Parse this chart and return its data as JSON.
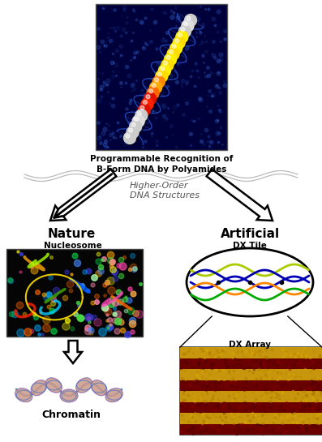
{
  "title_top": "Programmable Recognition of\nB-Form DNA by Polyamides",
  "title_center": "Higher-Order\nDNA Structures",
  "label_nature": "Nature",
  "label_artificial": "Artificial",
  "label_nucleosome": "Nucleosome",
  "label_chromatin": "Chromatin",
  "label_dx_tile": "DX Tile",
  "label_dx_array": "DX Array",
  "bg_color": "#ffffff",
  "fig_width": 3.97,
  "fig_height": 5.45,
  "dpi": 100
}
